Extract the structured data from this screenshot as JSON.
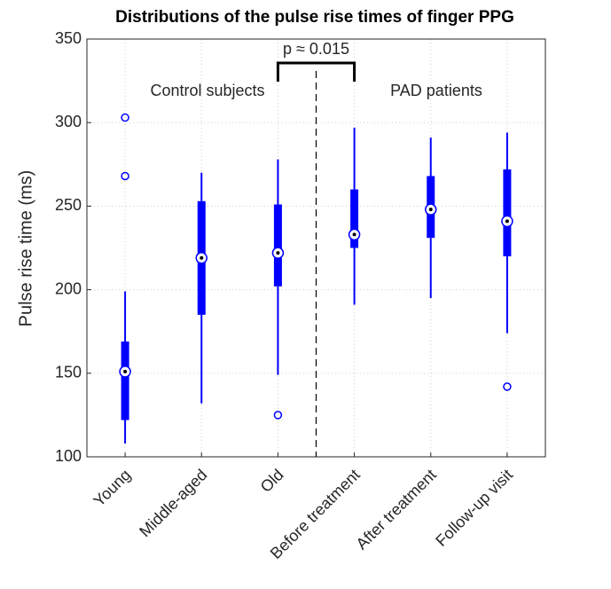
{
  "chart_data": {
    "type": "box",
    "title": "Distributions of the  pulse rise times of finger PPG",
    "ylabel": "Pulse rise time (ms)",
    "categories": [
      "Young",
      "Middle-aged",
      "Old",
      "Before treatment",
      "After treatment",
      "Follow-up visit"
    ],
    "boxes": [
      {
        "whisker_low": 108,
        "q1": 122,
        "median": 151,
        "q3": 169,
        "whisker_high": 199,
        "outliers": [
          268,
          303
        ]
      },
      {
        "whisker_low": 132,
        "q1": 185,
        "median": 219,
        "q3": 253,
        "whisker_high": 270,
        "outliers": []
      },
      {
        "whisker_low": 149,
        "q1": 202,
        "median": 222,
        "q3": 251,
        "whisker_high": 278,
        "outliers": [
          125
        ]
      },
      {
        "whisker_low": 191,
        "q1": 225,
        "median": 233,
        "q3": 260,
        "whisker_high": 297,
        "outliers": []
      },
      {
        "whisker_low": 195,
        "q1": 231,
        "median": 248,
        "q3": 268,
        "whisker_high": 291,
        "outliers": []
      },
      {
        "whisker_low": 174,
        "q1": 220,
        "median": 241,
        "q3": 272,
        "whisker_high": 294,
        "outliers": [
          142
        ]
      }
    ],
    "color": "#0000ff",
    "ylim": [
      100,
      350
    ],
    "yticks": [
      100,
      150,
      200,
      250,
      300,
      350
    ],
    "grid": true,
    "annotations": {
      "p_value": "p ≈ 0.015",
      "left_group": "Control subjects",
      "right_group": "PAD patients"
    }
  }
}
